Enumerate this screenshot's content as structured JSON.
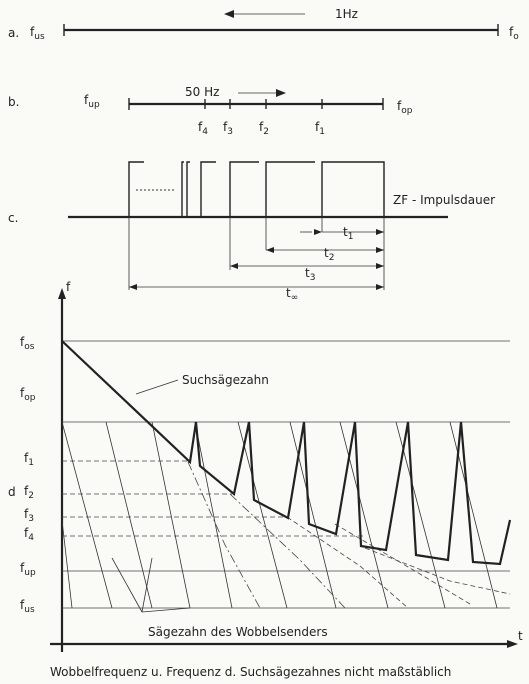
{
  "a": {
    "section": "a.",
    "start": "f",
    "start_sub": "us",
    "end": "f",
    "end_sub": "o",
    "rate": "1Hz"
  },
  "b": {
    "section": "b.",
    "start": "f",
    "start_sub": "up",
    "end": "f",
    "end_sub": "op",
    "rate": "50 Hz",
    "marks": [
      {
        "t": "f",
        "s": "4"
      },
      {
        "t": "f",
        "s": "3"
      },
      {
        "t": "f",
        "s": "2"
      },
      {
        "t": "f",
        "s": "1"
      }
    ]
  },
  "c": {
    "section": "c.",
    "label": "ZF - Impulsdauer",
    "durations": [
      {
        "t": "t",
        "s": "1"
      },
      {
        "t": "t",
        "s": "2"
      },
      {
        "t": "t",
        "s": "3"
      },
      {
        "t": "t",
        "s": "∞"
      }
    ]
  },
  "d": {
    "section": "d",
    "y_axis": "f",
    "x_axis": "t",
    "levels": [
      {
        "t": "f",
        "s": "os"
      },
      {
        "t": "f",
        "s": "op"
      },
      {
        "t": "f",
        "s": "1"
      },
      {
        "t": "f",
        "s": "2"
      },
      {
        "t": "f",
        "s": "3"
      },
      {
        "t": "f",
        "s": "4"
      },
      {
        "t": "f",
        "s": "up"
      },
      {
        "t": "f",
        "s": "us"
      }
    ],
    "search_label": "Suchsägezahn",
    "wobble_label": "Sägezahn des Wobbelsenders"
  },
  "caption": "Wobbelfrequenz u. Frequenz d. Suchsägezahnes nicht maßstäblich"
}
